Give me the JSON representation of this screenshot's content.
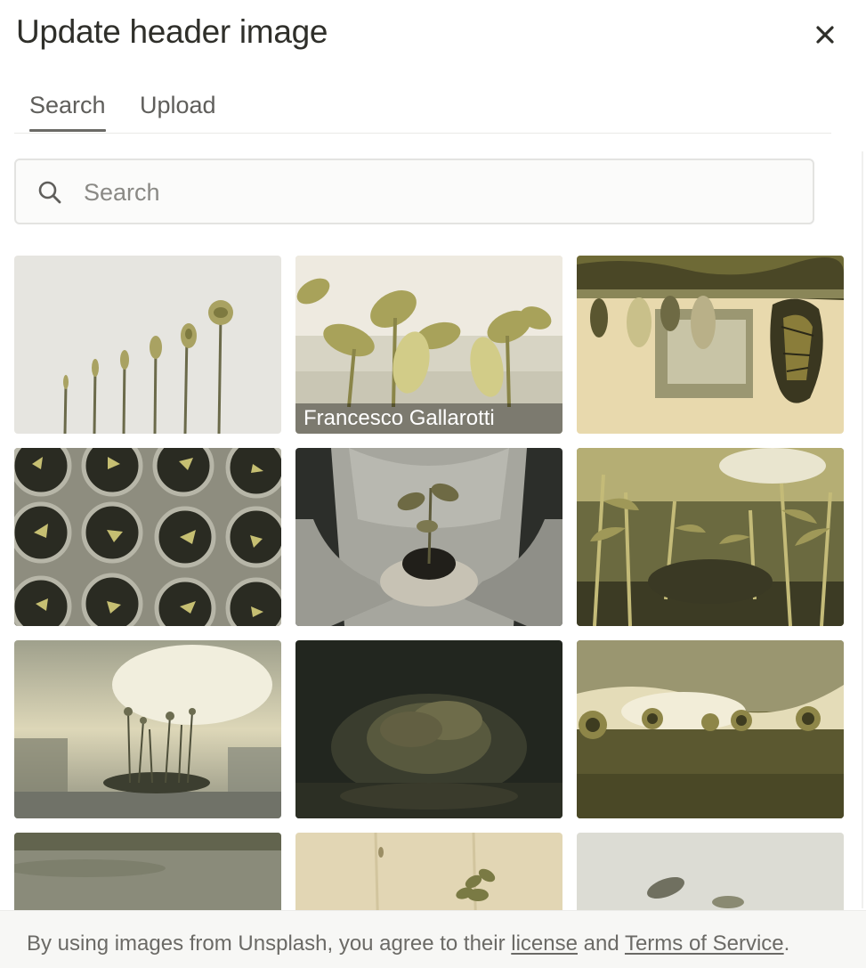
{
  "dialog": {
    "title": "Update header image",
    "close_icon": "close-icon"
  },
  "tabs": [
    {
      "label": "Search",
      "active": true
    },
    {
      "label": "Upload",
      "active": false
    }
  ],
  "search": {
    "placeholder": "Search",
    "value": "",
    "icon": "search-icon"
  },
  "images": [
    {
      "subject": "seedlings-growth-stages",
      "credit": ""
    },
    {
      "subject": "sprouting-seedlings",
      "credit": "Francesco Gallarotti"
    },
    {
      "subject": "butterfly-chrysalis",
      "credit": ""
    },
    {
      "subject": "potted-seedlings-top-view",
      "credit": ""
    },
    {
      "subject": "hands-holding-sprout",
      "credit": ""
    },
    {
      "subject": "corn-field",
      "credit": ""
    },
    {
      "subject": "misty-wildflowers",
      "credit": ""
    },
    {
      "subject": "dark-plant-bokeh",
      "credit": ""
    },
    {
      "subject": "sunflower-field-sunset",
      "credit": ""
    },
    {
      "subject": "grey-wall-plant",
      "credit": ""
    },
    {
      "subject": "plant-on-wood",
      "credit": ""
    },
    {
      "subject": "sprout-on-white",
      "credit": ""
    }
  ],
  "footer": {
    "prefix": "By using images from Unsplash, you agree to their ",
    "license_link": "license",
    "middle": " and ",
    "terms_link": "Terms of Service",
    "suffix": "."
  },
  "colors": {
    "accent_underline": "#6b6a66",
    "text": "#37352f",
    "muted": "#6b6a66",
    "footer_bg": "#f7f7f5"
  }
}
